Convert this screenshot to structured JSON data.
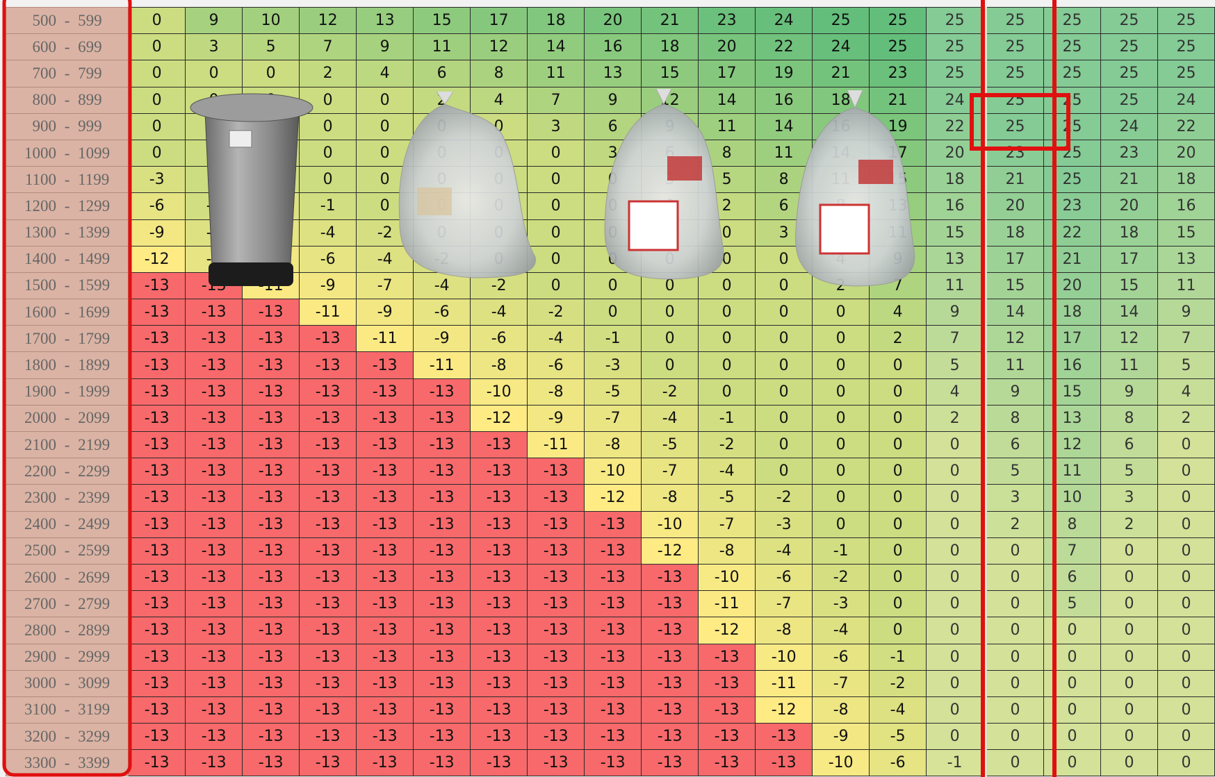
{
  "table": {
    "rows": [
      [
        "500 - 599",
        0,
        9,
        10,
        12,
        13,
        15,
        17,
        18,
        20,
        21,
        23,
        24,
        25,
        25,
        25,
        25,
        25,
        25,
        25
      ],
      [
        "600 - 699",
        0,
        3,
        5,
        7,
        9,
        11,
        12,
        14,
        16,
        18,
        20,
        22,
        24,
        25,
        25,
        25,
        25,
        25,
        25
      ],
      [
        "700 - 799",
        0,
        0,
        0,
        2,
        4,
        6,
        8,
        11,
        13,
        15,
        17,
        19,
        21,
        23,
        25,
        25,
        25,
        25,
        25
      ],
      [
        "800 - 899",
        0,
        0,
        0,
        0,
        0,
        2,
        4,
        7,
        9,
        12,
        14,
        16,
        18,
        21,
        24,
        25,
        25,
        25,
        24
      ],
      [
        "900 - 999",
        0,
        0,
        0,
        0,
        0,
        0,
        0,
        3,
        6,
        9,
        11,
        14,
        16,
        19,
        22,
        25,
        25,
        24,
        22
      ],
      [
        "1000 - 1099",
        0,
        0,
        0,
        0,
        0,
        0,
        0,
        0,
        3,
        6,
        8,
        11,
        14,
        17,
        20,
        23,
        25,
        23,
        20
      ],
      [
        "1100 - 1199",
        -3,
        0,
        -1,
        0,
        0,
        0,
        0,
        0,
        0,
        3,
        5,
        8,
        11,
        15,
        18,
        21,
        25,
        21,
        18
      ],
      [
        "1200 - 1299",
        -6,
        -1,
        -4,
        -1,
        0,
        0,
        0,
        0,
        0,
        0,
        2,
        6,
        8,
        13,
        16,
        20,
        23,
        20,
        16
      ],
      [
        "1300 - 1399",
        -9,
        -4,
        -6,
        -4,
        -2,
        0,
        0,
        0,
        0,
        0,
        0,
        3,
        6,
        11,
        15,
        18,
        22,
        18,
        15
      ],
      [
        "1400 - 1499",
        -12,
        -6,
        -9,
        -6,
        -4,
        -2,
        0,
        0,
        0,
        0,
        0,
        0,
        4,
        9,
        13,
        17,
        21,
        17,
        13
      ],
      [
        "1500 - 1599",
        -13,
        -13,
        -11,
        -9,
        -7,
        -4,
        -2,
        0,
        0,
        0,
        0,
        0,
        2,
        7,
        11,
        15,
        20,
        15,
        11
      ],
      [
        "1600 - 1699",
        -13,
        -13,
        -13,
        -11,
        -9,
        -6,
        -4,
        -2,
        0,
        0,
        0,
        0,
        0,
        4,
        9,
        14,
        18,
        14,
        9
      ],
      [
        "1700 - 1799",
        -13,
        -13,
        -13,
        -13,
        -11,
        -9,
        -6,
        -4,
        -1,
        0,
        0,
        0,
        0,
        2,
        7,
        12,
        17,
        12,
        7
      ],
      [
        "1800 - 1899",
        -13,
        -13,
        -13,
        -13,
        -13,
        -11,
        -8,
        -6,
        -3,
        0,
        0,
        0,
        0,
        0,
        5,
        11,
        16,
        11,
        5
      ],
      [
        "1900 - 1999",
        -13,
        -13,
        -13,
        -13,
        -13,
        -13,
        -10,
        -8,
        -5,
        -2,
        0,
        0,
        0,
        0,
        4,
        9,
        15,
        9,
        4
      ],
      [
        "2000 - 2099",
        -13,
        -13,
        -13,
        -13,
        -13,
        -13,
        -12,
        -9,
        -7,
        -4,
        -1,
        0,
        0,
        0,
        2,
        8,
        13,
        8,
        2
      ],
      [
        "2100 - 2199",
        -13,
        -13,
        -13,
        -13,
        -13,
        -13,
        -13,
        -11,
        -8,
        -5,
        -2,
        0,
        0,
        0,
        0,
        6,
        12,
        6,
        0
      ],
      [
        "2200 - 2299",
        -13,
        -13,
        -13,
        -13,
        -13,
        -13,
        -13,
        -13,
        -10,
        -7,
        -4,
        0,
        0,
        0,
        0,
        5,
        11,
        5,
        0
      ],
      [
        "2300 - 2399",
        -13,
        -13,
        -13,
        -13,
        -13,
        -13,
        -13,
        -13,
        -12,
        -8,
        -5,
        -2,
        0,
        0,
        0,
        3,
        10,
        3,
        0
      ],
      [
        "2400 - 2499",
        -13,
        -13,
        -13,
        -13,
        -13,
        -13,
        -13,
        -13,
        -13,
        -10,
        -7,
        -3,
        0,
        0,
        0,
        2,
        8,
        2,
        0
      ],
      [
        "2500 - 2599",
        -13,
        -13,
        -13,
        -13,
        -13,
        -13,
        -13,
        -13,
        -13,
        -12,
        -8,
        -4,
        -1,
        0,
        0,
        0,
        7,
        0,
        0
      ],
      [
        "2600 - 2699",
        -13,
        -13,
        -13,
        -13,
        -13,
        -13,
        -13,
        -13,
        -13,
        -13,
        -10,
        -6,
        -2,
        0,
        0,
        0,
        6,
        0,
        0
      ],
      [
        "2700 - 2799",
        -13,
        -13,
        -13,
        -13,
        -13,
        -13,
        -13,
        -13,
        -13,
        -13,
        -11,
        -7,
        -3,
        0,
        0,
        0,
        5,
        0,
        0
      ],
      [
        "2800 - 2899",
        -13,
        -13,
        -13,
        -13,
        -13,
        -13,
        -13,
        -13,
        -13,
        -13,
        -12,
        -8,
        -4,
        0,
        0,
        0,
        0,
        0,
        0
      ],
      [
        "2900 - 2999",
        -13,
        -13,
        -13,
        -13,
        -13,
        -13,
        -13,
        -13,
        -13,
        -13,
        -13,
        -10,
        -6,
        -1,
        0,
        0,
        0,
        0,
        0
      ],
      [
        "3000 - 3099",
        -13,
        -13,
        -13,
        -13,
        -13,
        -13,
        -13,
        -13,
        -13,
        -13,
        -13,
        -11,
        -7,
        -2,
        0,
        0,
        0,
        0,
        0
      ],
      [
        "3100 - 3199",
        -13,
        -13,
        -13,
        -13,
        -13,
        -13,
        -13,
        -13,
        -13,
        -13,
        -13,
        -12,
        -8,
        -4,
        0,
        0,
        0,
        0,
        0
      ],
      [
        "3200 - 3299",
        -13,
        -13,
        -13,
        -13,
        -13,
        -13,
        -13,
        -13,
        -13,
        -13,
        -13,
        -13,
        -9,
        -5,
        0,
        0,
        0,
        0,
        0
      ],
      [
        "3300 - 3399",
        -13,
        -13,
        -13,
        -13,
        -13,
        -13,
        -13,
        -13,
        -13,
        -13,
        -13,
        -13,
        -10,
        -6,
        -1,
        0,
        0,
        0,
        0
      ]
    ]
  }
}
